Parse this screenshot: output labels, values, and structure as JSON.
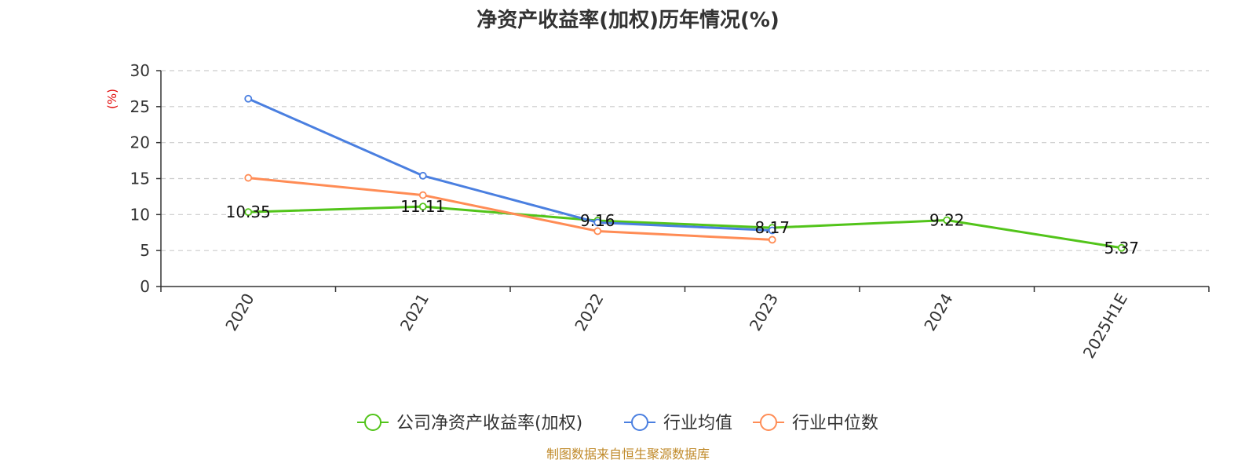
{
  "chart_data": {
    "type": "line",
    "title": "净资产收益率(加权)历年情况(%)",
    "ylabel": "(%)",
    "ylim": [
      0,
      30
    ],
    "yticks": [
      0,
      5,
      10,
      15,
      20,
      25,
      30
    ],
    "categories": [
      "2020",
      "2021",
      "2022",
      "2023",
      "2024",
      "2025H1E"
    ],
    "grid": true,
    "legend_position": "bottom",
    "series": [
      {
        "name": "公司净资产收益率(加权)",
        "color": "#52c41a",
        "values": [
          10.35,
          11.11,
          9.16,
          8.17,
          9.22,
          5.37
        ],
        "labels": [
          "10.35",
          "11.11",
          "9.16",
          "8.17",
          "9.22",
          "5.37"
        ]
      },
      {
        "name": "行业均值",
        "color": "#4a7fe0",
        "values": [
          26.1,
          15.4,
          8.9,
          7.8,
          null,
          null
        ]
      },
      {
        "name": "行业中位数",
        "color": "#ff8c55",
        "values": [
          15.1,
          12.7,
          7.7,
          6.5,
          null,
          null
        ]
      }
    ]
  },
  "footer": {
    "source": "制图数据来自恒生聚源数据库"
  }
}
